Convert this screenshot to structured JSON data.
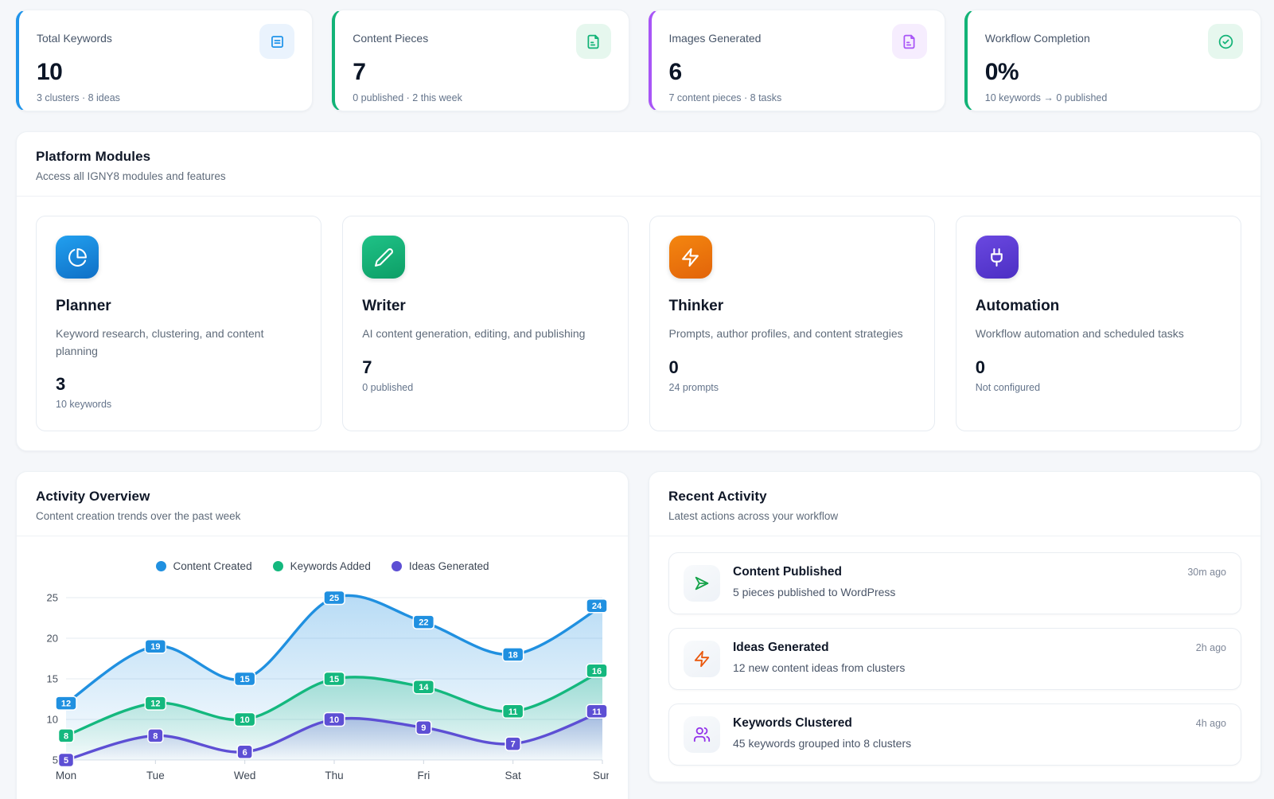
{
  "stats": [
    {
      "label": "Total Keywords",
      "value": "10",
      "sub": "3 clusters · 8 ideas",
      "accent": "#2094ea",
      "icon_bg": "#eaf3fd"
    },
    {
      "label": "Content Pieces",
      "value": "7",
      "sub": "0 published · 2 this week",
      "accent": "#12b377",
      "icon_bg": "#e6f7ee"
    },
    {
      "label": "Images Generated",
      "value": "6",
      "sub": "7 content pieces · 8 tasks",
      "accent": "#a855f7",
      "icon_bg": "#f6edfe"
    },
    {
      "label": "Workflow Completion",
      "value": "0%",
      "sub": "10 keywords → 0 published",
      "accent": "#12b377",
      "icon_bg": "#e6f7ee"
    }
  ],
  "modules_panel": {
    "title": "Platform Modules",
    "subtitle": "Access all IGNY8 modules and features",
    "modules": [
      {
        "name": "Planner",
        "description": "Keyword research, clustering, and content planning",
        "value": "3",
        "sub": "10 keywords",
        "gradient": [
          "#22a0ef",
          "#0f6fc6"
        ]
      },
      {
        "name": "Writer",
        "description": "AI content generation, editing, and publishing",
        "value": "7",
        "sub": "0 published",
        "gradient": [
          "#1fc287",
          "#0d9e66"
        ]
      },
      {
        "name": "Thinker",
        "description": "Prompts, author profiles, and content strategies",
        "value": "0",
        "sub": "24 prompts",
        "gradient": [
          "#f4860f",
          "#e2640a"
        ]
      },
      {
        "name": "Automation",
        "description": "Workflow automation and scheduled tasks",
        "value": "0",
        "sub": "Not configured",
        "gradient": [
          "#6a48e0",
          "#4c2fc4"
        ]
      }
    ]
  },
  "activity_overview": {
    "title": "Activity Overview",
    "subtitle": "Content creation trends over the past week"
  },
  "chart_data": {
    "type": "area",
    "x": [
      "Mon",
      "Tue",
      "Wed",
      "Thu",
      "Fri",
      "Sat",
      "Sun"
    ],
    "series": [
      {
        "name": "Content Created",
        "color": "#2090e0",
        "values": [
          12,
          19,
          15,
          25,
          22,
          18,
          24
        ]
      },
      {
        "name": "Keywords Added",
        "color": "#14b87e",
        "values": [
          8,
          12,
          10,
          15,
          14,
          11,
          16
        ]
      },
      {
        "name": "Ideas Generated",
        "color": "#5d4fd4",
        "values": [
          5,
          8,
          6,
          10,
          9,
          7,
          11
        ]
      }
    ],
    "ylim": [
      5,
      25
    ],
    "yticks": [
      5,
      10,
      15,
      20,
      25
    ],
    "grid": true,
    "legend_position": "top",
    "point_labels": true
  },
  "recent_activity": {
    "title": "Recent Activity",
    "subtitle": "Latest actions across your workflow",
    "items": [
      {
        "title": "Content Published",
        "description": "5 pieces published to WordPress",
        "time": "30m ago",
        "icon_color": "#16a34a"
      },
      {
        "title": "Ideas Generated",
        "description": "12 new content ideas from clusters",
        "time": "2h ago",
        "icon_color": "#ea580c"
      },
      {
        "title": "Keywords Clustered",
        "description": "45 keywords grouped into 8 clusters",
        "time": "4h ago",
        "icon_color": "#9333ea"
      }
    ]
  }
}
